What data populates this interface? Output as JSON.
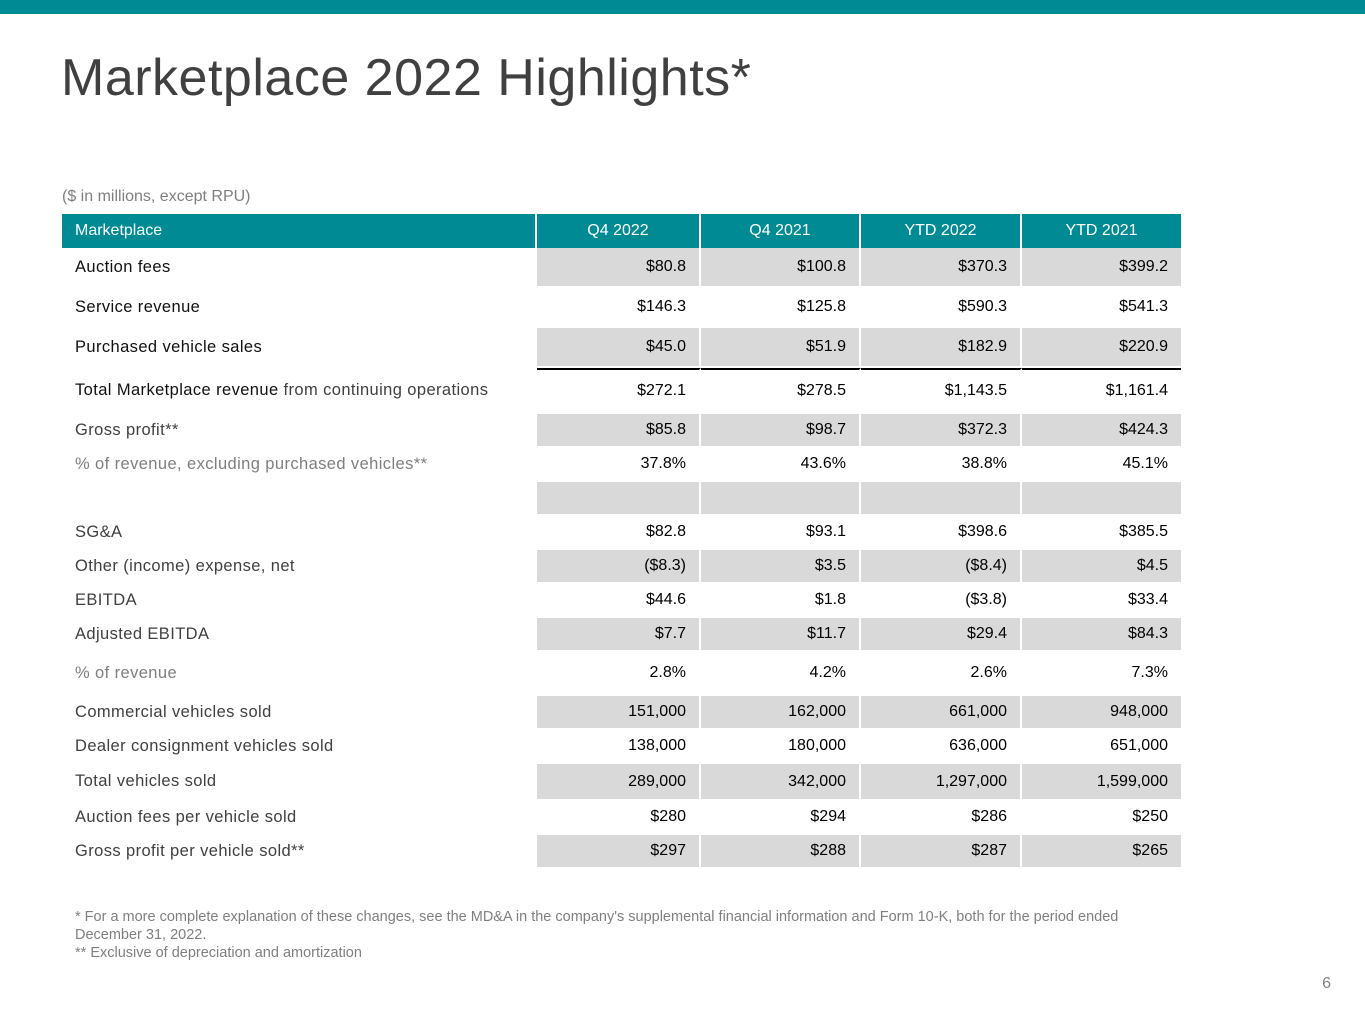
{
  "header": {
    "title": "Marketplace 2022 Highlights*",
    "accent_color": "#008a93"
  },
  "table": {
    "caption": "($ in millions, except RPU)",
    "columns": [
      "Marketplace",
      "Q4 2022",
      "Q4 2021",
      "YTD 2022",
      "YTD 2021"
    ],
    "rows": [
      {
        "label": "Auction fees",
        "values": [
          "$80.8",
          "$100.8",
          "$370.3",
          "$399.2"
        ]
      },
      {
        "label": "Service revenue",
        "values": [
          "$146.3",
          "$125.8",
          "$590.3",
          "$541.3"
        ]
      },
      {
        "label": "Purchased vehicle sales",
        "values": [
          "$45.0",
          "$51.9",
          "$182.9",
          "$220.9"
        ]
      },
      {
        "label": "Total Marketplace revenue",
        "label_suffix": " from continuing operations",
        "values": [
          "$272.1",
          "$278.5",
          "$1,143.5",
          "$1,161.4"
        ]
      },
      {
        "label": "Gross profit**",
        "values": [
          "$85.8",
          "$98.7",
          "$372.3",
          "$424.3"
        ]
      },
      {
        "label": "% of revenue, excluding purchased vehicles**",
        "values": [
          "37.8%",
          "43.6%",
          "38.8%",
          "45.1%"
        ]
      },
      {
        "label": "",
        "values": [
          "",
          "",
          "",
          ""
        ]
      },
      {
        "label": "SG&A",
        "values": [
          "$82.8",
          "$93.1",
          "$398.6",
          "$385.5"
        ]
      },
      {
        "label": "Other (income) expense, net",
        "values": [
          "($8.3)",
          "$3.5",
          "($8.4)",
          "$4.5"
        ]
      },
      {
        "label": "EBITDA",
        "values": [
          "$44.6",
          "$1.8",
          "($3.8)",
          "$33.4"
        ]
      },
      {
        "label": "Adjusted EBITDA",
        "values": [
          "$7.7",
          "$11.7",
          "$29.4",
          "$84.3"
        ]
      },
      {
        "label": "% of revenue",
        "values": [
          "2.8%",
          "4.2%",
          "2.6%",
          "7.3%"
        ]
      },
      {
        "label": "Commercial vehicles sold",
        "values": [
          "151,000",
          "162,000",
          "661,000",
          "948,000"
        ]
      },
      {
        "label": "Dealer consignment vehicles sold",
        "values": [
          "138,000",
          "180,000",
          "636,000",
          "651,000"
        ]
      },
      {
        "label": "Total vehicles sold",
        "values": [
          "289,000",
          "342,000",
          "1,297,000",
          "1,599,000"
        ]
      },
      {
        "label": "Auction fees per vehicle sold",
        "values": [
          "$280",
          "$294",
          "$286",
          "$250"
        ]
      },
      {
        "label": "Gross profit per vehicle sold**",
        "values": [
          "$297",
          "$288",
          "$287",
          "$265"
        ]
      }
    ]
  },
  "footnotes": [
    "* For a more complete explanation of these changes, see the MD&A in the company's supplemental financial information and Form 10-K, both for the period ended December 31, 2022.",
    "** Exclusive of depreciation and amortization"
  ],
  "page_number": "6"
}
